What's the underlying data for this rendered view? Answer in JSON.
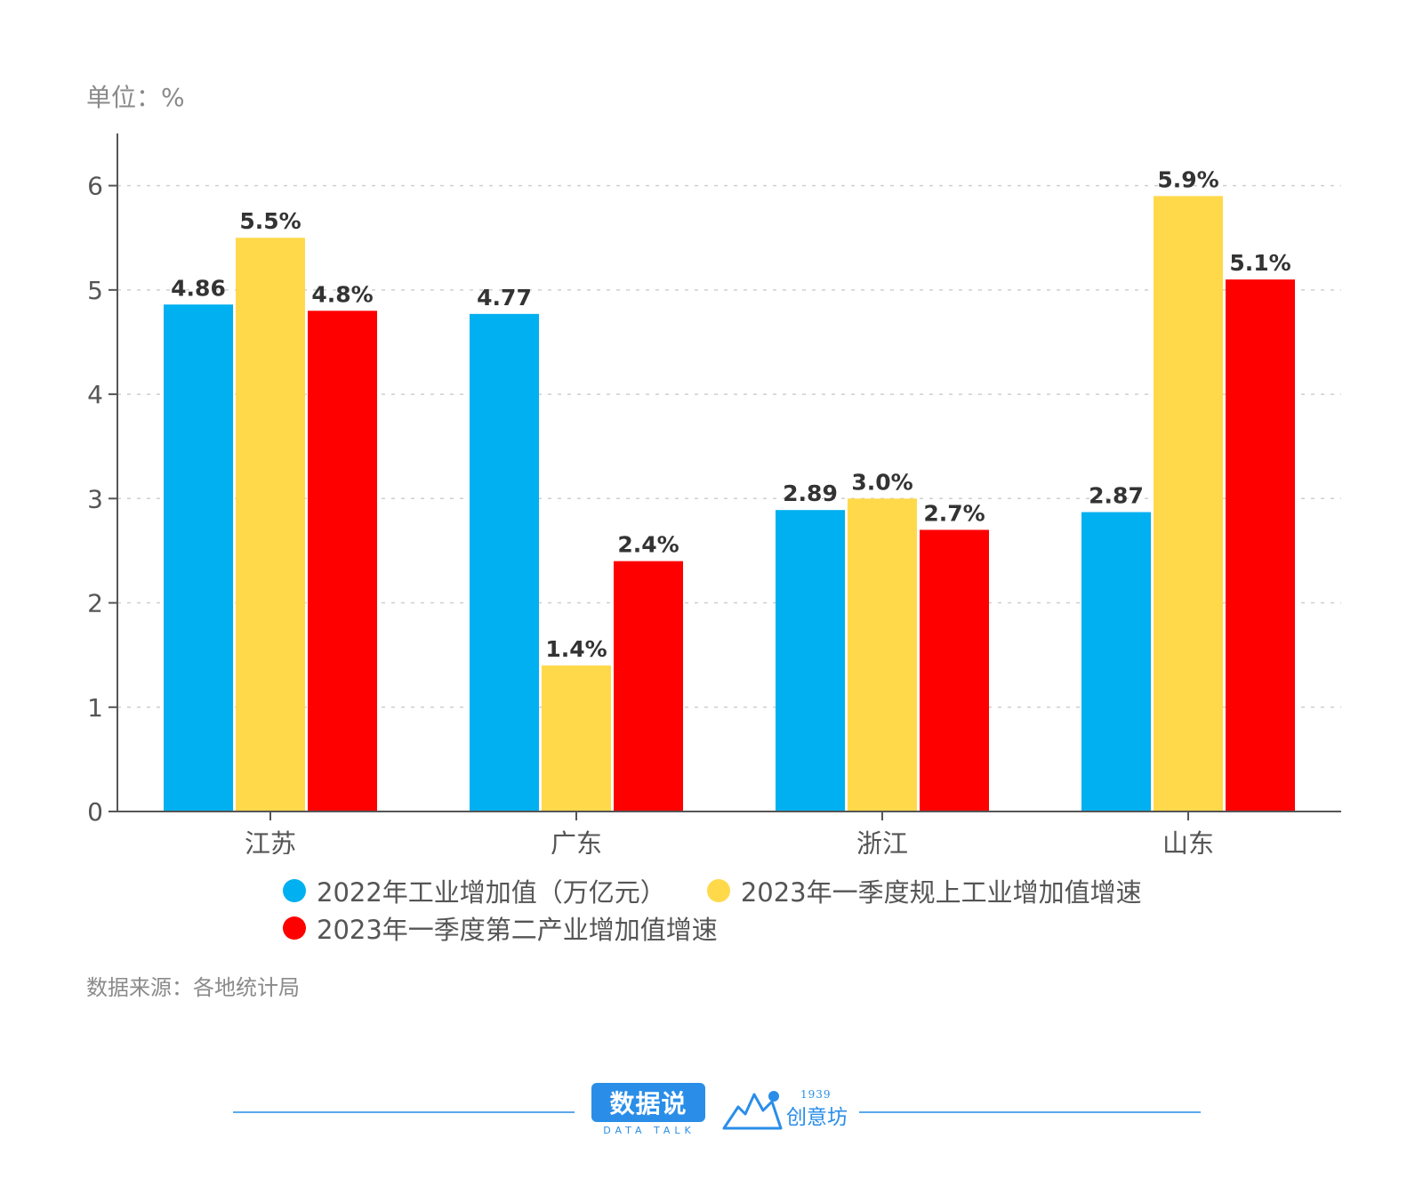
{
  "unit_label": "单位：%",
  "source_text": "数据来源：各地统计局",
  "brand": {
    "primary": "数据说",
    "primary_sub": "DATA TALK",
    "secondary": "创意坊",
    "secondary_year": "1939"
  },
  "chart_data": {
    "type": "bar",
    "categories": [
      "江苏",
      "广东",
      "浙江",
      "山东"
    ],
    "series": [
      {
        "name": "2022年工业增加值（万亿元）",
        "values": [
          4.86,
          4.77,
          2.89,
          2.87
        ],
        "labels": [
          "4.86",
          "4.77",
          "2.89",
          "2.87"
        ],
        "color": "#00b0f0"
      },
      {
        "name": "2023年一季度规上工业增加值增速",
        "values": [
          5.5,
          1.4,
          3.0,
          5.9
        ],
        "labels": [
          "5.5%",
          "1.4%",
          "3.0%",
          "5.9%"
        ],
        "color": "#ffd94a"
      },
      {
        "name": "2023年一季度第二产业增加值增速",
        "values": [
          4.8,
          2.4,
          2.7,
          5.1
        ],
        "labels": [
          "4.8%",
          "2.4%",
          "2.7%",
          "5.1%"
        ],
        "color": "#ff0000"
      }
    ],
    "yticks": [
      "0",
      "1",
      "2",
      "3",
      "4",
      "5",
      "6"
    ],
    "ylim": [
      0,
      6.5
    ],
    "grid": true,
    "legend_position": "bottom"
  }
}
